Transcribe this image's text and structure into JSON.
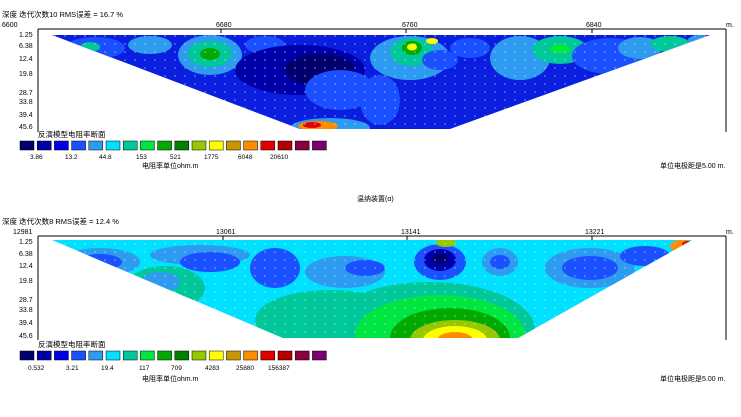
{
  "center_caption": "温纳装置(α)",
  "colors": {
    "axis": "#000000",
    "dot": "#e0e0ff"
  },
  "panels": [
    {
      "header": "深度   迭代次数10 RMS误差 = 16.7 %",
      "x_ticks": [
        {
          "label": "6600",
          "value": 6600
        },
        {
          "label": "6680",
          "value": 6680
        },
        {
          "label": "6760",
          "value": 6760
        },
        {
          "label": "6840",
          "value": 6840
        }
      ],
      "x_unit": "m.",
      "depth_labels": [
        "1.25",
        "6.38",
        "12.4",
        "19.8",
        "28.7",
        "33.8",
        "39.4",
        "45.6"
      ],
      "section_title": "反演模型电阻率断面",
      "legend_colors": [
        "#00006e",
        "#0000aa",
        "#0000e6",
        "#1a50ff",
        "#2d9bf0",
        "#00e0ff",
        "#00c89a",
        "#00e640",
        "#00aa00",
        "#008000",
        "#96c800",
        "#ffff00",
        "#c89600",
        "#ff8c00",
        "#e00000",
        "#b40000",
        "#8c0040",
        "#780070"
      ],
      "legend_labels": [
        "3.86",
        "13.2",
        "44.8",
        "153",
        "521",
        "1775",
        "6048",
        "20610"
      ],
      "unit_label": "电阻率单位ohm.m",
      "spacing_label": "单位电极距是5.00 m."
    },
    {
      "header": "深度   迭代次数8 RMS误差 = 12.4 %",
      "x_ticks": [
        {
          "label": "12981",
          "value": 12981
        },
        {
          "label": "13061",
          "value": 13061
        },
        {
          "label": "13141",
          "value": 13141
        },
        {
          "label": "13221",
          "value": 13221
        }
      ],
      "x_unit": "m.",
      "depth_labels": [
        "1.25",
        "6.38",
        "12.4",
        "19.8",
        "28.7",
        "33.8",
        "39.4",
        "45.6"
      ],
      "section_title": "反演模型电阻率断面",
      "legend_colors": [
        "#00006e",
        "#0000aa",
        "#0000e6",
        "#1a50ff",
        "#2d9bf0",
        "#00e0ff",
        "#00c89a",
        "#00e640",
        "#00aa00",
        "#008000",
        "#96c800",
        "#ffff00",
        "#c89600",
        "#ff8c00",
        "#e00000",
        "#b40000",
        "#8c0040",
        "#780070"
      ],
      "legend_labels": [
        "0.532",
        "3.21",
        "19.4",
        "117",
        "709",
        "4283",
        "25880",
        "156387"
      ],
      "unit_label": "电阻率单位ohm.m",
      "spacing_label": "单位电极距是5.00 m."
    }
  ],
  "chart_data": [
    {
      "type": "heatmap",
      "title": "反演模型电阻率断面",
      "x_ticks": [
        6600,
        6680,
        6760,
        6840
      ],
      "x_unit": "m.",
      "depth_ticks": [
        1.25,
        6.38,
        12.4,
        19.8,
        28.7,
        33.8,
        39.4,
        45.6
      ],
      "iterations": 10,
      "rms_error_percent": 16.7,
      "color_scale": [
        3.86,
        13.2,
        44.8,
        153,
        521,
        1775,
        6048,
        20610
      ],
      "electrode_spacing_m": 5.0
    },
    {
      "type": "heatmap",
      "title": "反演模型电阻率断面",
      "x_ticks": [
        12981,
        13061,
        13141,
        13221
      ],
      "x_unit": "m.",
      "depth_ticks": [
        1.25,
        6.38,
        12.4,
        19.8,
        28.7,
        33.8,
        39.4,
        45.6
      ],
      "iterations": 8,
      "rms_error_percent": 12.4,
      "color_scale": [
        0.532,
        3.21,
        19.4,
        117,
        709,
        4283,
        25880,
        156387
      ],
      "electrode_spacing_m": 5.0
    }
  ]
}
